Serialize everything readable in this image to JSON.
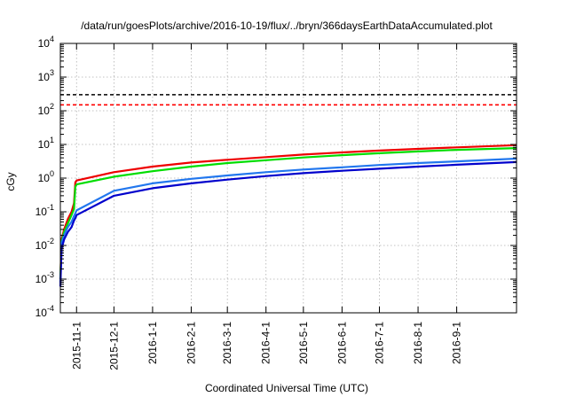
{
  "chart_data": {
    "type": "line",
    "title": "/data/run/goesPlots/archive/2016-10-19/flux/../bryn/366daysEarthDataAccumulated.plot",
    "xlabel": "Coordinated Universal Time (UTC)",
    "ylabel": "cGy",
    "yscale": "log",
    "ylim": [
      0.0001,
      10000
    ],
    "xlim": [
      "2015-10-19",
      "2016-10-19"
    ],
    "grid": true,
    "y_ticks": [
      {
        "value": 0.0001,
        "base": "10",
        "exp": "-4"
      },
      {
        "value": 0.001,
        "base": "10",
        "exp": "-3"
      },
      {
        "value": 0.01,
        "base": "10",
        "exp": "-2"
      },
      {
        "value": 0.1,
        "base": "10",
        "exp": "-1"
      },
      {
        "value": 1,
        "base": "10",
        "exp": "0"
      },
      {
        "value": 10,
        "base": "10",
        "exp": "1"
      },
      {
        "value": 100,
        "base": "10",
        "exp": "2"
      },
      {
        "value": 1000,
        "base": "10",
        "exp": "3"
      },
      {
        "value": 10000,
        "base": "10",
        "exp": "4"
      }
    ],
    "x_ticks": [
      "2015-11-1",
      "2015-12-1",
      "2016-1-1",
      "2016-2-1",
      "2016-3-1",
      "2016-4-1",
      "2016-5-1",
      "2016-6-1",
      "2016-7-1",
      "2016-8-1",
      "2016-9-1"
    ],
    "thresholds": [
      {
        "value": 300,
        "color": "#000000",
        "style": "dashed"
      },
      {
        "value": 150,
        "color": "#ff0000",
        "style": "dashed"
      }
    ],
    "x": [
      "2015-10-19",
      "2015-10-20",
      "2015-10-22",
      "2015-10-25",
      "2015-10-28",
      "2015-10-30",
      "2015-10-31",
      "2015-11-1",
      "2015-12-1",
      "2016-1-1",
      "2016-2-1",
      "2016-3-1",
      "2016-4-1",
      "2016-5-1",
      "2016-6-1",
      "2016-7-1",
      "2016-8-1",
      "2016-9-1",
      "2016-10-19"
    ],
    "series": [
      {
        "color": "#ee0000",
        "values": [
          0.001,
          0.015,
          0.03,
          0.06,
          0.1,
          0.18,
          0.75,
          0.85,
          1.5,
          2.2,
          2.9,
          3.5,
          4.2,
          5.0,
          5.8,
          6.6,
          7.4,
          8.2,
          9.5
        ]
      },
      {
        "color": "#00dd00",
        "values": [
          0.001,
          0.013,
          0.025,
          0.045,
          0.08,
          0.12,
          0.55,
          0.65,
          1.1,
          1.6,
          2.2,
          2.8,
          3.4,
          4.1,
          4.8,
          5.5,
          6.2,
          6.9,
          7.8
        ]
      },
      {
        "color": "#2277ee",
        "values": [
          0.0008,
          0.012,
          0.02,
          0.035,
          0.05,
          0.075,
          0.09,
          0.11,
          0.42,
          0.7,
          0.95,
          1.2,
          1.5,
          1.8,
          2.1,
          2.45,
          2.8,
          3.15,
          3.8
        ]
      },
      {
        "color": "#0000cc",
        "values": [
          0.0006,
          0.008,
          0.015,
          0.025,
          0.035,
          0.055,
          0.065,
          0.08,
          0.3,
          0.5,
          0.7,
          0.9,
          1.15,
          1.4,
          1.65,
          1.9,
          2.2,
          2.5,
          3.0
        ]
      }
    ]
  }
}
